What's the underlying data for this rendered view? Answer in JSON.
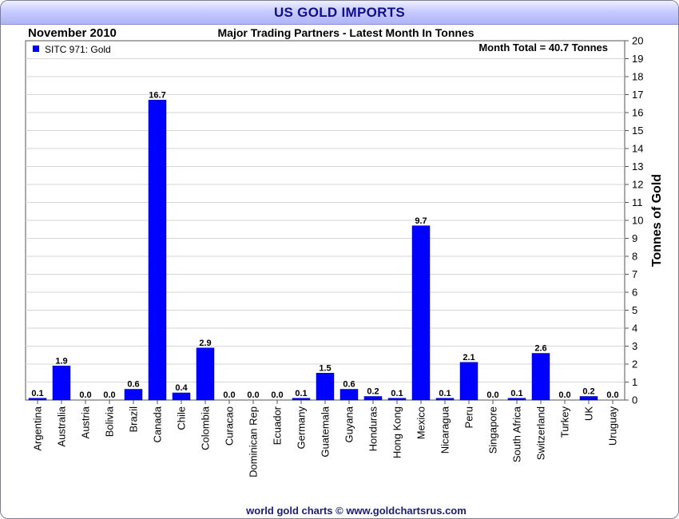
{
  "header": {
    "title": "US GOLD IMPORTS",
    "period": "November 2010",
    "subtitle": "Major Trading Partners - Latest Month In Tonnes"
  },
  "legend": {
    "label": "SITC 971: Gold",
    "color": "#0000ff"
  },
  "annotation": "Month Total = 40.7 Tonnes",
  "footer": "world gold charts © www.goldchartsrus.com",
  "chart_data": {
    "type": "bar",
    "title": "Major Trading Partners - Latest Month In Tonnes",
    "ylabel": "Tonnes of Gold",
    "ylim": [
      0,
      20
    ],
    "y_axis_side": "right",
    "grid": true,
    "legend_position": "top-left",
    "bar_color": "#0000ff",
    "categories": [
      "Argentina",
      "Australia",
      "Austria",
      "Bolivia",
      "Brazil",
      "Canada",
      "Chile",
      "Colombia",
      "Curacao",
      "Dominican Rep",
      "Ecuador",
      "Germany",
      "Guatemala",
      "Guyana",
      "Honduras",
      "Hong Kong",
      "Mexico",
      "Nicaragua",
      "Peru",
      "Singapore",
      "South Africa",
      "Switzerland",
      "Turkey",
      "UK",
      "Uruguay"
    ],
    "values": [
      0.1,
      1.9,
      0.0,
      0.0,
      0.6,
      16.7,
      0.4,
      2.9,
      0.0,
      0.0,
      0.0,
      0.1,
      1.5,
      0.6,
      0.2,
      0.1,
      9.7,
      0.1,
      2.1,
      0.0,
      0.1,
      2.6,
      0.0,
      0.2,
      0.0
    ],
    "labels": [
      "0.1",
      "1.9",
      "0.0",
      "0.0",
      "0.6",
      "16.7",
      "0.4",
      "2.9",
      "0.0",
      "0.0",
      "0.0",
      "0.1",
      "1.5",
      "0.6",
      "0.2",
      "0.1",
      "9.7",
      "0.1",
      "2.1",
      "0.0",
      "0.1",
      "2.6",
      "0.0",
      "0.2",
      "0.0"
    ],
    "yticks": [
      "0",
      "1",
      "2",
      "3",
      "4",
      "5",
      "6",
      "7",
      "8",
      "9",
      "10",
      "11",
      "12",
      "13",
      "14",
      "15",
      "16",
      "17",
      "18",
      "19",
      "20"
    ]
  }
}
